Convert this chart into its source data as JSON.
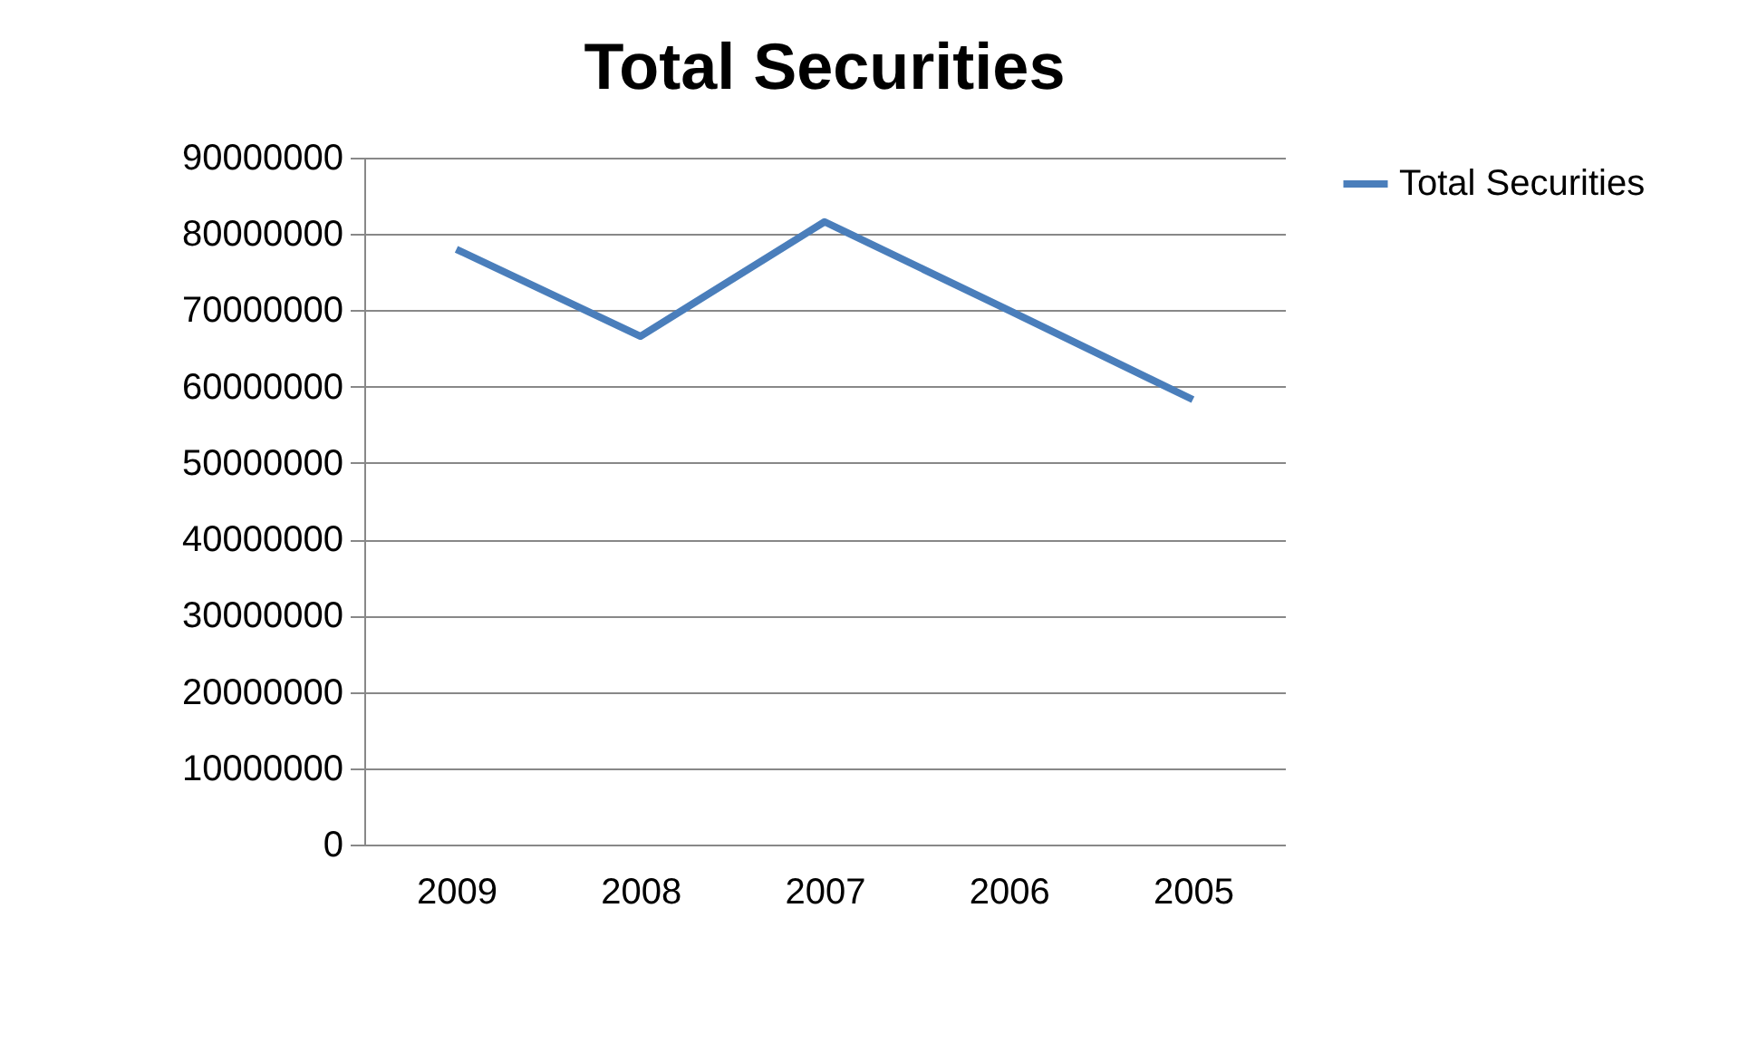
{
  "chart_data": {
    "type": "line",
    "title": "Total Securities",
    "categories": [
      "2009",
      "2008",
      "2007",
      "2006",
      "2005"
    ],
    "series": [
      {
        "name": "Total Securities",
        "color": "#4a7ebb",
        "values": [
          78000000,
          66600000,
          81600000,
          70000000,
          58300000
        ]
      }
    ],
    "ylim": [
      0,
      90000000
    ],
    "yticks": [
      0,
      10000000,
      20000000,
      30000000,
      40000000,
      50000000,
      60000000,
      70000000,
      80000000,
      90000000
    ],
    "grid": "y",
    "legend": "right",
    "marker": "none",
    "line_style": "solid"
  }
}
